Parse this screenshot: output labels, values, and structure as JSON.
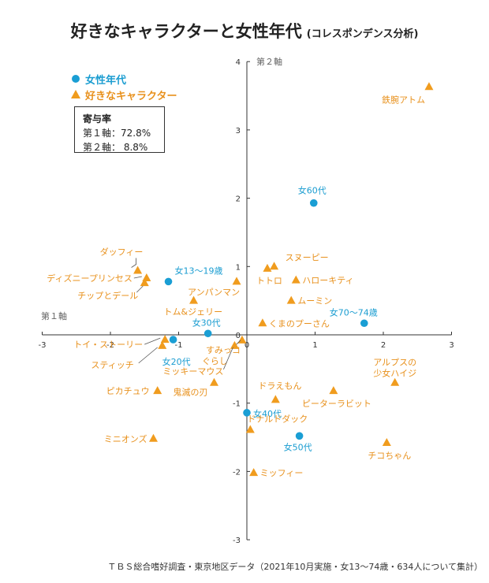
{
  "title": "好きなキャラクターと女性年代",
  "subtitle": "(コレスポンデンス分析)",
  "legend": {
    "age_label": "女性年代",
    "char_label": "好きなキャラクター"
  },
  "contribution": {
    "heading": "寄与率",
    "axis1": "第１軸：72.8%",
    "axis2": "第２軸：  8.8%"
  },
  "footer": "ＴＢＳ総合嗜好調査・東京地区データ（2021年10月実施・女13〜74歳・634人について集計）",
  "colors": {
    "age": "#1a9ed4",
    "character": "#f09c1e",
    "age_text": "#1b9dd1",
    "character_text": "#e8911d"
  },
  "chart_data": {
    "type": "scatter",
    "xlabel": "第１軸",
    "ylabel": "第２軸",
    "xlim": [
      -3,
      3
    ],
    "ylim": [
      -3,
      4
    ],
    "xticks": [
      "-3",
      "-2",
      "-1",
      "0",
      "1",
      "2",
      "3"
    ],
    "yticks": [
      "-3",
      "-2",
      "-1",
      "0",
      "1",
      "2",
      "3",
      "4"
    ],
    "grid": false,
    "legend_position": "top-left",
    "series": [
      {
        "name": "女性年代",
        "marker": "circle",
        "points": [
          {
            "label": "女13〜19歳",
            "x": -1.15,
            "y": 0.78
          },
          {
            "label": "女20代",
            "x": -1.08,
            "y": -0.07
          },
          {
            "label": "女30代",
            "x": -0.57,
            "y": 0.02
          },
          {
            "label": "女40代",
            "x": 0.0,
            "y": -1.14
          },
          {
            "label": "女50代",
            "x": 0.77,
            "y": -1.48
          },
          {
            "label": "女60代",
            "x": 0.98,
            "y": 1.93
          },
          {
            "label": "女70〜74歳",
            "x": 1.72,
            "y": 0.17
          }
        ]
      },
      {
        "name": "好きなキャラクター",
        "marker": "triangle",
        "points": [
          {
            "label": "鉄腕アトム",
            "x": 2.67,
            "y": 3.63
          },
          {
            "label": "ダッフィー",
            "x": -1.6,
            "y": 0.94
          },
          {
            "label": "ディズニープリンセス",
            "x": -1.47,
            "y": 0.83
          },
          {
            "label": "チップとデール",
            "x": -1.5,
            "y": 0.76
          },
          {
            "label": "アンパンマン",
            "x": -0.15,
            "y": 0.78
          },
          {
            "label": "トム&ジェリー",
            "x": -0.78,
            "y": 0.5
          },
          {
            "label": "トトロ",
            "x": 0.3,
            "y": 0.97
          },
          {
            "label": "スヌーピー",
            "x": 0.4,
            "y": 1.0
          },
          {
            "label": "ハローキティ",
            "x": 0.72,
            "y": 0.8
          },
          {
            "label": "ムーミン",
            "x": 0.65,
            "y": 0.5
          },
          {
            "label": "くまのプーさん",
            "x": 0.23,
            "y": 0.17
          },
          {
            "label": "トイ・ストーリー",
            "x": -1.2,
            "y": -0.07
          },
          {
            "label": "スティッチ",
            "x": -1.24,
            "y": -0.16
          },
          {
            "label": "すみっコぐらし",
            "x": -0.07,
            "y": -0.08
          },
          {
            "label": "ミッキーマウス",
            "x": -0.18,
            "y": -0.16
          },
          {
            "label": "鬼滅の刃",
            "x": -0.48,
            "y": -0.7
          },
          {
            "label": "ピカチュウ",
            "x": -1.31,
            "y": -0.82
          },
          {
            "label": "ドラえもん",
            "x": 0.42,
            "y": -0.95
          },
          {
            "label": "ピーターラビット",
            "x": 1.27,
            "y": -0.82
          },
          {
            "label": "アルプスの少女ハイジ",
            "x": 2.17,
            "y": -0.7
          },
          {
            "label": "ドナルドダック",
            "x": 0.05,
            "y": -1.39
          },
          {
            "label": "ミニオンズ",
            "x": -1.37,
            "y": -1.52
          },
          {
            "label": "チコちゃん",
            "x": 2.05,
            "y": -1.58
          },
          {
            "label": "ミッフィー",
            "x": 0.1,
            "y": -2.02
          }
        ]
      }
    ]
  }
}
